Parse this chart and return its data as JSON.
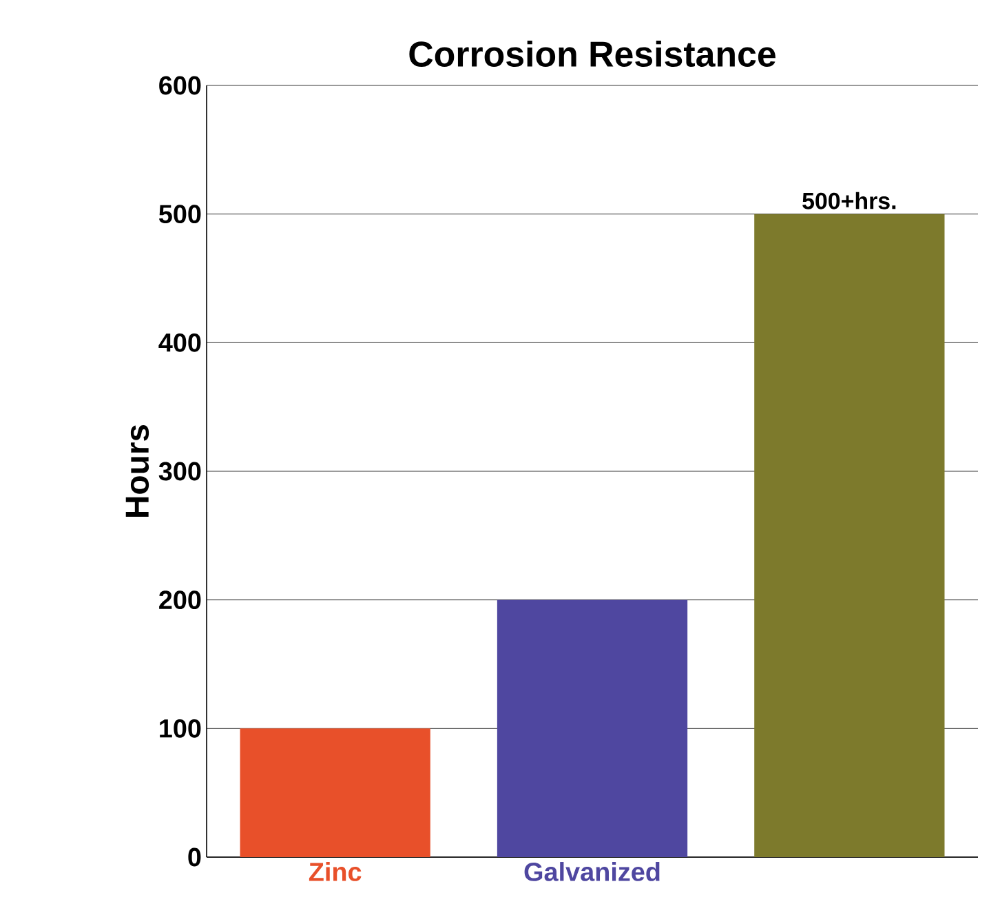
{
  "chart_data": {
    "type": "bar",
    "title": "Corrosion Resistance",
    "ylabel": "Hours",
    "categories": [
      "Zinc",
      "Galvanized",
      null
    ],
    "values": [
      100,
      200,
      500
    ],
    "colors": [
      "#e8502a",
      "#4f47a0",
      "#7d7a2c"
    ],
    "ylim": [
      0,
      600
    ],
    "yticks": [
      0,
      100,
      200,
      300,
      400,
      500,
      600
    ],
    "grid": "y",
    "annotations": [
      {
        "text": "500+hrs.",
        "y": 500
      }
    ]
  }
}
